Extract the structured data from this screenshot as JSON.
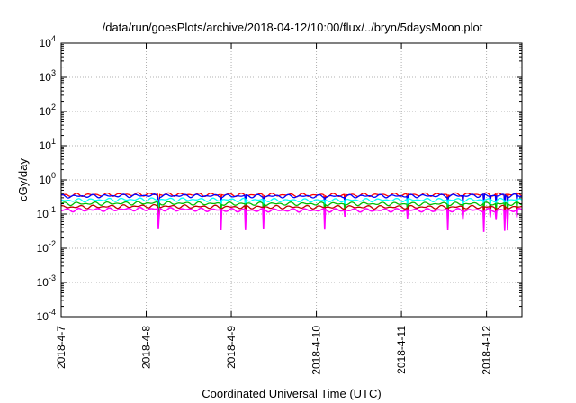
{
  "chart_data": {
    "type": "line",
    "title": "/data/run/goesPlots/archive/2018-04-12/10:00/flux/../bryn/5daysMoon.plot",
    "xlabel": "Coordinated Universal Time (UTC)",
    "ylabel": "cGy/day",
    "y_scale": "log",
    "ylim": [
      0.0001,
      10000
    ],
    "y_ticks": [
      {
        "base": "10",
        "exp": "-4",
        "value": 0.0001
      },
      {
        "base": "10",
        "exp": "-3",
        "value": 0.001
      },
      {
        "base": "10",
        "exp": "-2",
        "value": 0.01
      },
      {
        "base": "10",
        "exp": "-1",
        "value": 0.1
      },
      {
        "base": "10",
        "exp": "0",
        "value": 1
      },
      {
        "base": "10",
        "exp": "1",
        "value": 10
      },
      {
        "base": "10",
        "exp": "2",
        "value": 100
      },
      {
        "base": "10",
        "exp": "3",
        "value": 1000
      },
      {
        "base": "10",
        "exp": "4",
        "value": 10000
      }
    ],
    "xlim": [
      "2018-04-07T00:00",
      "2018-04-12T10:00"
    ],
    "x_ticks": [
      "2018-4-7",
      "2018-4-8",
      "2018-4-9",
      "2018-4-10",
      "2018-4-11",
      "2018-4-12"
    ],
    "x_tick_dates": [
      "2018-04-07",
      "2018-04-08",
      "2018-04-09",
      "2018-04-10",
      "2018-04-11",
      "2018-04-12"
    ],
    "grid": true,
    "series_dates": [
      "2018-04-07",
      "2018-04-08",
      "2018-04-09",
      "2018-04-10",
      "2018-04-11",
      "2018-04-12"
    ],
    "series": [
      {
        "color": "#ff0000",
        "values": [
          0.36,
          0.38,
          0.37,
          0.36,
          0.37,
          0.38
        ]
      },
      {
        "color": "#0000ff",
        "values": [
          0.33,
          0.35,
          0.34,
          0.33,
          0.34,
          0.35
        ]
      },
      {
        "color": "#00ffff",
        "values": [
          0.25,
          0.27,
          0.26,
          0.25,
          0.26,
          0.26
        ]
      },
      {
        "color": "#00c000",
        "values": [
          0.2,
          0.21,
          0.2,
          0.2,
          0.2,
          0.2
        ]
      },
      {
        "color": "#c00000",
        "values": [
          0.16,
          0.17,
          0.16,
          0.16,
          0.16,
          0.16
        ]
      },
      {
        "color": "#ff00ff",
        "values": [
          0.13,
          0.14,
          0.13,
          0.13,
          0.13,
          0.13
        ]
      }
    ]
  }
}
